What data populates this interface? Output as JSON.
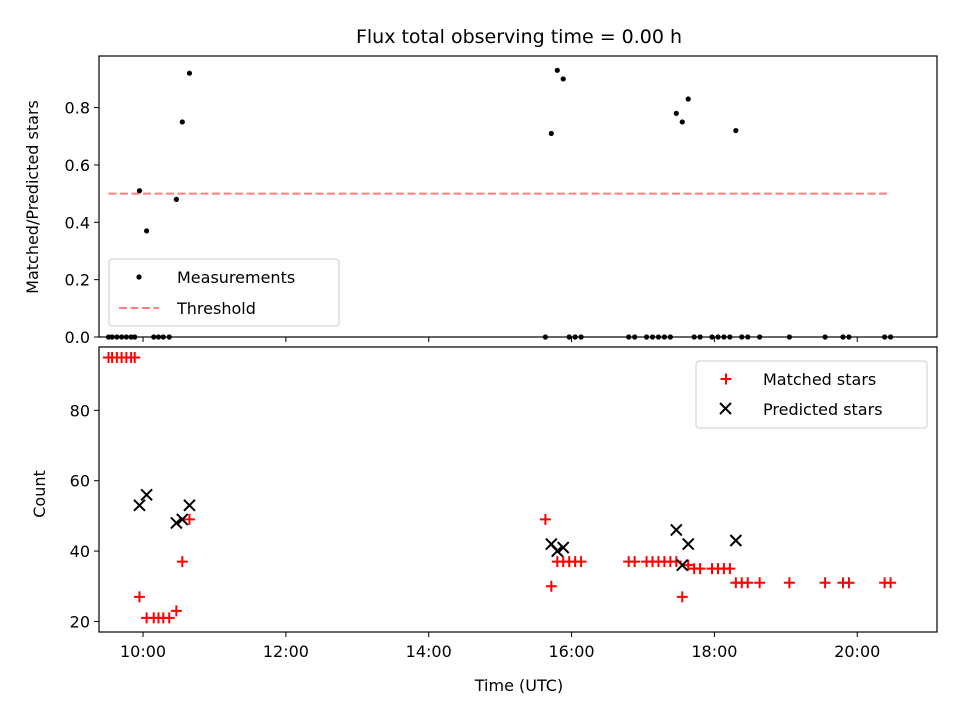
{
  "chart_data": [
    {
      "type": "scatter",
      "title": "Flux total observing time = 0.00 h",
      "ylabel": "Matched/Predicted stars",
      "xlim": [
        "09:23",
        "21:07"
      ],
      "ylim": [
        0,
        0.98
      ],
      "yticks": [
        "0.0",
        "0.2",
        "0.4",
        "0.6",
        "0.8"
      ],
      "legend": {
        "placement": "lower-left",
        "entries": [
          "Measurements",
          "Threshold"
        ]
      },
      "series": [
        {
          "name": "Measurements",
          "kind": "scatter",
          "color": "#000000",
          "points": [
            [
              "09:31",
              0.0
            ],
            [
              "09:34",
              0.0
            ],
            [
              "09:38",
              0.0
            ],
            [
              "09:42",
              0.0
            ],
            [
              "09:46",
              0.0
            ],
            [
              "09:50",
              0.0
            ],
            [
              "09:53",
              0.0
            ],
            [
              "09:57",
              0.51
            ],
            [
              "10:03",
              0.37
            ],
            [
              "10:09",
              0.0
            ],
            [
              "10:13",
              0.0
            ],
            [
              "10:17",
              0.0
            ],
            [
              "10:22",
              0.0
            ],
            [
              "10:28",
              0.48
            ],
            [
              "10:33",
              0.75
            ],
            [
              "10:39",
              0.92
            ],
            [
              "15:38",
              0.0
            ],
            [
              "15:43",
              0.71
            ],
            [
              "15:48",
              0.93
            ],
            [
              "15:53",
              0.9
            ],
            [
              "15:58",
              0.0
            ],
            [
              "16:03",
              0.0
            ],
            [
              "16:08",
              0.0
            ],
            [
              "16:48",
              0.0
            ],
            [
              "16:53",
              0.0
            ],
            [
              "17:03",
              0.0
            ],
            [
              "17:08",
              0.0
            ],
            [
              "17:13",
              0.0
            ],
            [
              "17:18",
              0.0
            ],
            [
              "17:23",
              0.0
            ],
            [
              "17:28",
              0.78
            ],
            [
              "17:33",
              0.75
            ],
            [
              "17:38",
              0.83
            ],
            [
              "17:43",
              0.0
            ],
            [
              "17:48",
              0.0
            ],
            [
              "17:58",
              0.0
            ],
            [
              "18:03",
              0.0
            ],
            [
              "18:08",
              0.0
            ],
            [
              "18:13",
              0.0
            ],
            [
              "18:18",
              0.72
            ],
            [
              "18:23",
              0.0
            ],
            [
              "18:28",
              0.0
            ],
            [
              "18:38",
              0.0
            ],
            [
              "19:03",
              0.0
            ],
            [
              "19:33",
              0.0
            ],
            [
              "19:48",
              0.0
            ],
            [
              "19:53",
              0.0
            ],
            [
              "20:23",
              0.0
            ],
            [
              "20:28",
              0.0
            ]
          ]
        },
        {
          "name": "Threshold",
          "kind": "line",
          "style": "dashed",
          "color": "#ff7f7f",
          "points": [
            [
              "09:31",
              0.5
            ],
            [
              "20:28",
              0.5
            ]
          ]
        }
      ]
    },
    {
      "type": "scatter",
      "xlabel": "Time (UTC)",
      "ylabel": "Count",
      "xlim": [
        "09:23",
        "21:07"
      ],
      "ylim": [
        17,
        98
      ],
      "xticks": [
        "10:00",
        "12:00",
        "14:00",
        "16:00",
        "18:00",
        "20:00"
      ],
      "yticks": [
        "20",
        "40",
        "60",
        "80"
      ],
      "legend": {
        "placement": "top-right",
        "entries": [
          "Matched stars",
          "Predicted stars"
        ]
      },
      "series": [
        {
          "name": "Matched stars",
          "marker": "plus",
          "color": "#ff0000",
          "points": [
            [
              "09:31",
              95
            ],
            [
              "09:34",
              95
            ],
            [
              "09:38",
              95
            ],
            [
              "09:42",
              95
            ],
            [
              "09:46",
              95
            ],
            [
              "09:50",
              95
            ],
            [
              "09:53",
              95
            ],
            [
              "09:57",
              27
            ],
            [
              "10:03",
              21
            ],
            [
              "10:09",
              21
            ],
            [
              "10:13",
              21
            ],
            [
              "10:17",
              21
            ],
            [
              "10:22",
              21
            ],
            [
              "10:28",
              23
            ],
            [
              "10:33",
              37
            ],
            [
              "10:39",
              49
            ],
            [
              "15:38",
              49
            ],
            [
              "15:43",
              30
            ],
            [
              "15:48",
              37
            ],
            [
              "15:53",
              37
            ],
            [
              "15:58",
              37
            ],
            [
              "16:03",
              37
            ],
            [
              "16:08",
              37
            ],
            [
              "16:48",
              37
            ],
            [
              "16:53",
              37
            ],
            [
              "17:03",
              37
            ],
            [
              "17:08",
              37
            ],
            [
              "17:13",
              37
            ],
            [
              "17:18",
              37
            ],
            [
              "17:23",
              37
            ],
            [
              "17:28",
              37
            ],
            [
              "17:33",
              27
            ],
            [
              "17:38",
              36
            ],
            [
              "17:43",
              35
            ],
            [
              "17:48",
              35
            ],
            [
              "17:58",
              35
            ],
            [
              "18:03",
              35
            ],
            [
              "18:08",
              35
            ],
            [
              "18:13",
              35
            ],
            [
              "18:18",
              31
            ],
            [
              "18:23",
              31
            ],
            [
              "18:28",
              31
            ],
            [
              "18:38",
              31
            ],
            [
              "19:03",
              31
            ],
            [
              "19:33",
              31
            ],
            [
              "19:48",
              31
            ],
            [
              "19:53",
              31
            ],
            [
              "20:23",
              31
            ],
            [
              "20:28",
              31
            ]
          ]
        },
        {
          "name": "Predicted stars",
          "marker": "x",
          "color": "#000000",
          "points": [
            [
              "09:57",
              53
            ],
            [
              "10:03",
              56
            ],
            [
              "10:28",
              48
            ],
            [
              "10:33",
              49
            ],
            [
              "10:39",
              53
            ],
            [
              "15:43",
              42
            ],
            [
              "15:48",
              40
            ],
            [
              "15:53",
              41
            ],
            [
              "17:28",
              46
            ],
            [
              "17:33",
              36
            ],
            [
              "17:38",
              42
            ],
            [
              "18:18",
              43
            ]
          ]
        }
      ]
    }
  ]
}
